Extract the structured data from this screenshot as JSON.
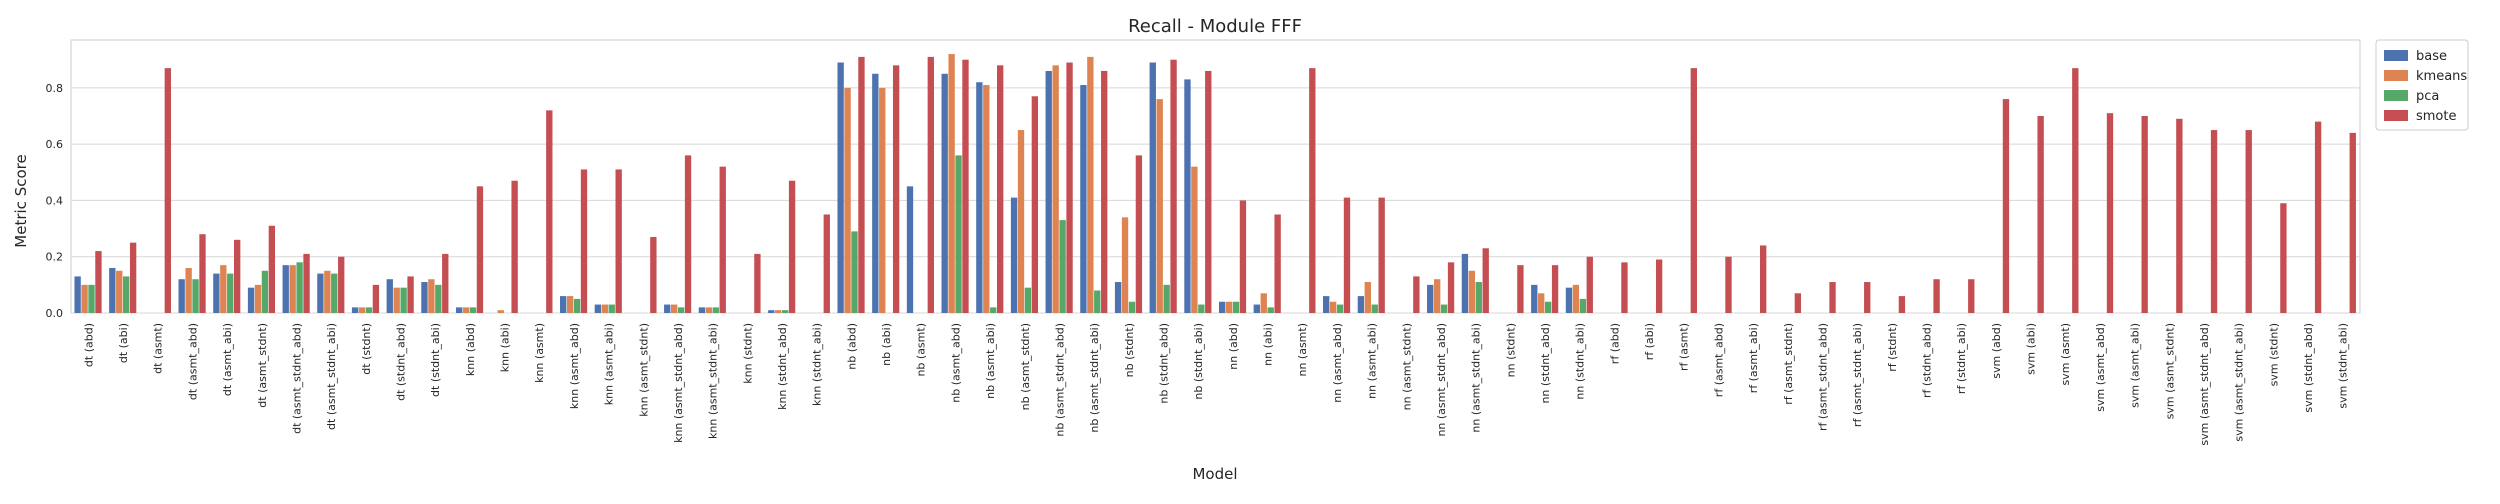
{
  "chart_data": {
    "type": "bar",
    "title": "Recall - Module FFF",
    "xlabel": "Model",
    "ylabel": "Metric Score",
    "ylim": [
      0,
      0.97
    ],
    "yticks": [
      "0.0",
      "0.2",
      "0.4",
      "0.6",
      "0.8"
    ],
    "grid": true,
    "legend_position": "outside-top-right",
    "colors": {
      "base": "#4c72b0",
      "kmeans": "#dd8452",
      "pca": "#55a868",
      "smote": "#c44e52"
    },
    "categories": [
      "dt (abd)",
      "dt (abi)",
      "dt (asmt)",
      "dt (asmt_abd)",
      "dt (asmt_abi)",
      "dt (asmt_stdnt)",
      "dt (asmt_stdnt_abd)",
      "dt (asmt_stdnt_abi)",
      "dt (stdnt)",
      "dt (stdnt_abd)",
      "dt (stdnt_abi)",
      "knn (abd)",
      "knn (abi)",
      "knn (asmt)",
      "knn (asmt_abd)",
      "knn (asmt_abi)",
      "knn (asmt_stdnt)",
      "knn (asmt_stdnt_abd)",
      "knn (asmt_stdnt_abi)",
      "knn (stdnt)",
      "knn (stdnt_abd)",
      "knn (stdnt_abi)",
      "nb (abd)",
      "nb (abi)",
      "nb (asmt)",
      "nb (asmt_abd)",
      "nb (asmt_abi)",
      "nb (asmt_stdnt)",
      "nb (asmt_stdnt_abd)",
      "nb (asmt_stdnt_abi)",
      "nb (stdnt)",
      "nb (stdnt_abd)",
      "nb (stdnt_abi)",
      "nn (abd)",
      "nn (abi)",
      "nn (asmt)",
      "nn (asmt_abd)",
      "nn (asmt_abi)",
      "nn (asmt_stdnt)",
      "nn (asmt_stdnt_abd)",
      "nn (asmt_stdnt_abi)",
      "nn (stdnt)",
      "nn (stdnt_abd)",
      "nn (stdnt_abi)",
      "rf (abd)",
      "rf (abi)",
      "rf (asmt)",
      "rf (asmt_abd)",
      "rf (asmt_abi)",
      "rf (asmt_stdnt)",
      "rf (asmt_stdnt_abd)",
      "rf (asmt_stdnt_abi)",
      "rf (stdnt)",
      "rf (stdnt_abd)",
      "rf (stdnt_abi)",
      "svm (abd)",
      "svm (abi)",
      "svm (asmt)",
      "svm (asmt_abd)",
      "svm (asmt_abi)",
      "svm (asmt_stdnt)",
      "svm (asmt_stdnt_abd)",
      "svm (asmt_stdnt_abi)",
      "svm (stdnt)",
      "svm (stdnt_abd)",
      "svm (stdnt_abi)"
    ],
    "series": [
      {
        "name": "base",
        "values": [
          0.13,
          0.16,
          0,
          0.12,
          0.14,
          0.09,
          0.17,
          0.14,
          0.02,
          0.12,
          0.11,
          0.02,
          0,
          0,
          0.06,
          0.03,
          0,
          0.03,
          0.02,
          0,
          0.01,
          0,
          0.89,
          0.85,
          0.45,
          0.85,
          0.82,
          0.41,
          0.86,
          0.81,
          0.11,
          0.89,
          0.83,
          0.04,
          0.03,
          0,
          0.06,
          0.06,
          0,
          0.1,
          0.21,
          0,
          0.1,
          0.09,
          0,
          0,
          0,
          0,
          0,
          0,
          0,
          0,
          0,
          0,
          0,
          0,
          0,
          0,
          0,
          0,
          0,
          0,
          0,
          0,
          0,
          0
        ]
      },
      {
        "name": "kmeans",
        "values": [
          0.1,
          0.15,
          0,
          0.16,
          0.17,
          0.1,
          0.17,
          0.15,
          0.02,
          0.09,
          0.12,
          0.02,
          0.01,
          0,
          0.06,
          0.03,
          0,
          0.03,
          0.02,
          0,
          0.01,
          0,
          0.8,
          0.8,
          0,
          0.92,
          0.81,
          0.65,
          0.88,
          0.91,
          0.34,
          0.76,
          0.52,
          0.04,
          0.07,
          0,
          0.04,
          0.11,
          0,
          0.12,
          0.15,
          0,
          0.07,
          0.1,
          0,
          0,
          0,
          0,
          0,
          0,
          0,
          0,
          0,
          0,
          0,
          0,
          0,
          0,
          0,
          0,
          0,
          0,
          0,
          0,
          0,
          0
        ]
      },
      {
        "name": "pca",
        "values": [
          0.1,
          0.13,
          0,
          0.12,
          0.14,
          0.15,
          0.18,
          0.14,
          0.02,
          0.09,
          0.1,
          0.02,
          0,
          0,
          0.05,
          0.03,
          0,
          0.02,
          0.02,
          0,
          0.01,
          0,
          0.29,
          0,
          0,
          0.56,
          0.02,
          0.09,
          0.33,
          0.08,
          0.04,
          0.1,
          0.03,
          0.04,
          0.02,
          0,
          0.03,
          0.03,
          0,
          0.03,
          0.11,
          0,
          0.04,
          0.05,
          0,
          0,
          0,
          0,
          0,
          0,
          0,
          0,
          0,
          0,
          0,
          0,
          0,
          0,
          0,
          0,
          0,
          0,
          0,
          0,
          0,
          0
        ]
      },
      {
        "name": "smote",
        "values": [
          0.22,
          0.25,
          0.87,
          0.28,
          0.26,
          0.31,
          0.21,
          0.2,
          0.1,
          0.13,
          0.21,
          0.45,
          0.47,
          0.72,
          0.51,
          0.51,
          0.27,
          0.56,
          0.52,
          0.21,
          0.47,
          0.35,
          0.91,
          0.88,
          0.91,
          0.9,
          0.88,
          0.77,
          0.89,
          0.86,
          0.56,
          0.9,
          0.86,
          0.4,
          0.35,
          0.87,
          0.41,
          0.41,
          0.13,
          0.18,
          0.23,
          0.17,
          0.17,
          0.2,
          0.18,
          0.19,
          0.87,
          0.2,
          0.24,
          0.07,
          0.11,
          0.11,
          0.06,
          0.12,
          0.12,
          0.76,
          0.7,
          0.87,
          0.71,
          0.7,
          0.69,
          0.65,
          0.65,
          0.39,
          0.68,
          0.64
        ]
      }
    ]
  }
}
